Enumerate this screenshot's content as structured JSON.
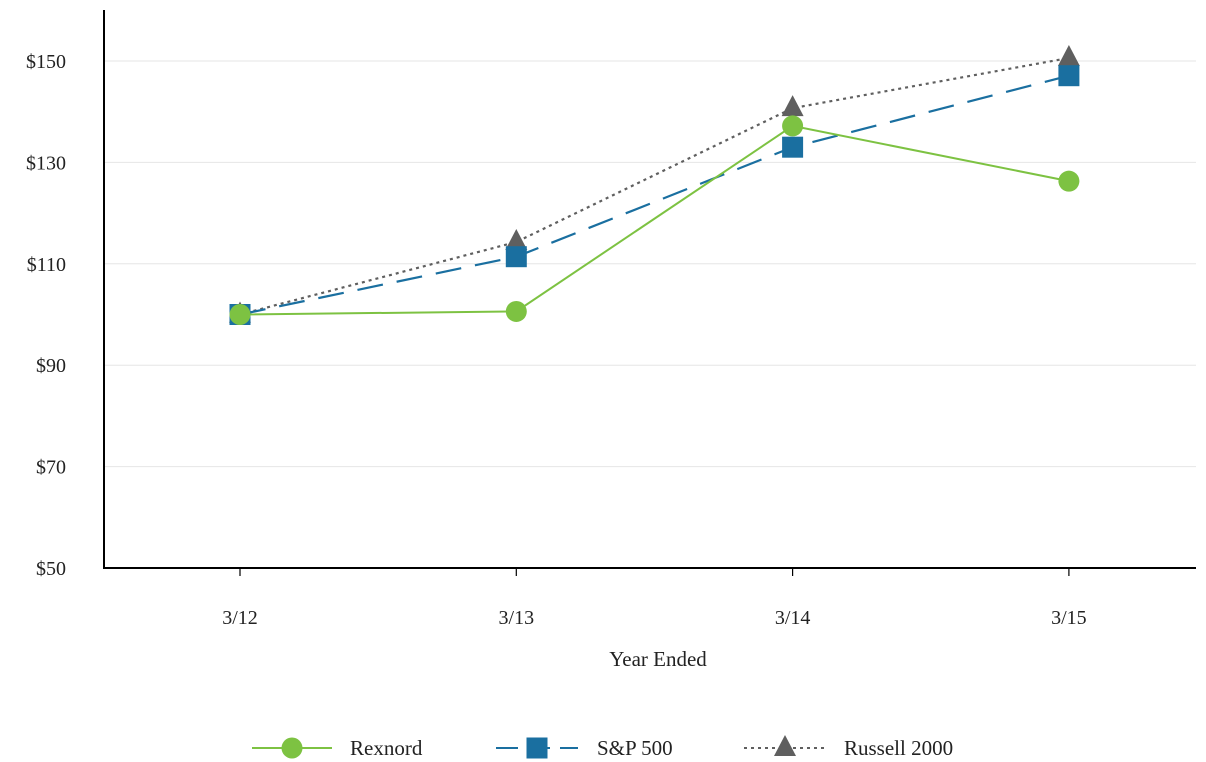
{
  "chart_data": {
    "type": "line",
    "title": "",
    "xlabel": "Year Ended",
    "ylabel": "",
    "categories": [
      "3/12",
      "3/13",
      "3/14",
      "3/15"
    ],
    "ylim": [
      50,
      160
    ],
    "yticks": [
      50,
      70,
      90,
      110,
      130,
      150
    ],
    "ytick_labels": [
      "$50",
      "$70",
      "$90",
      "$110",
      "$130",
      "$150"
    ],
    "grid": "horizontal",
    "legend_position": "bottom",
    "series": [
      {
        "name": "Rexnord",
        "values": [
          100,
          100.6,
          137.2,
          126.3
        ],
        "color": "#7dc242",
        "marker": "circle",
        "line_style": "solid"
      },
      {
        "name": "S&P 500",
        "values": [
          100,
          111.4,
          133.0,
          147.1
        ],
        "color": "#1a6fa0",
        "marker": "square",
        "line_style": "dashed"
      },
      {
        "name": "Russell 2000",
        "values": [
          100,
          114.3,
          140.7,
          150.6
        ],
        "color": "#5f5f5f",
        "marker": "triangle",
        "line_style": "dotted"
      }
    ]
  }
}
